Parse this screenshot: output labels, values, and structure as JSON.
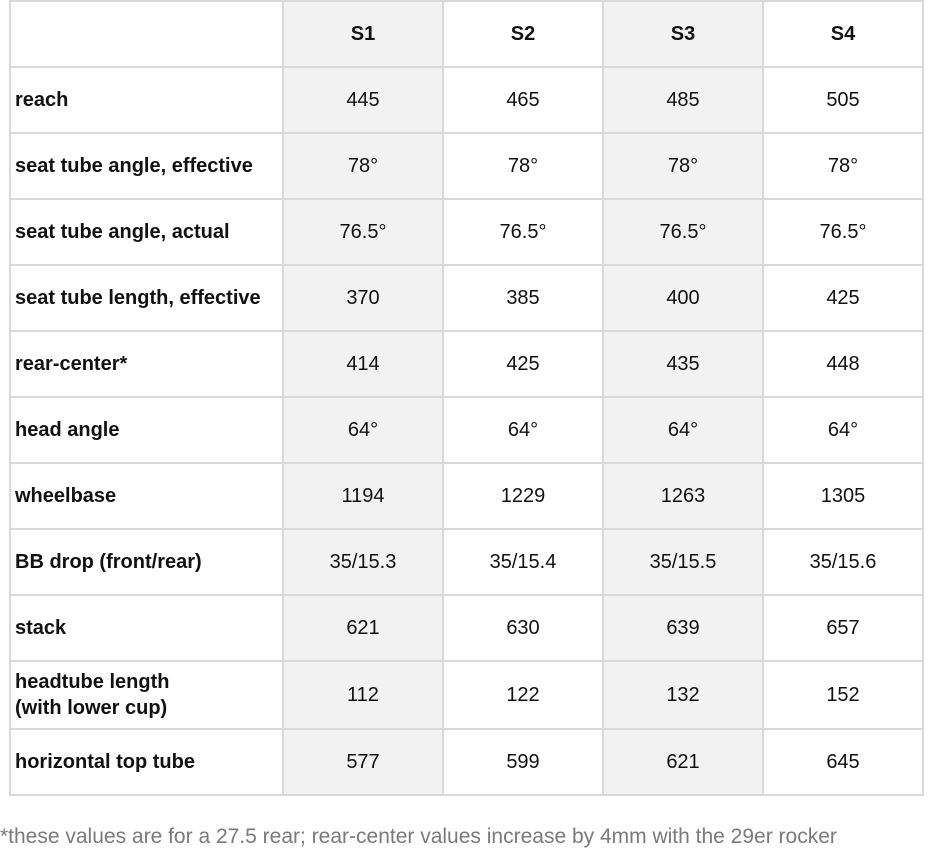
{
  "table": {
    "sizes": [
      "S1",
      "S2",
      "S3",
      "S4"
    ],
    "rows": [
      {
        "label": "reach",
        "values": [
          "445",
          "465",
          "485",
          "505"
        ]
      },
      {
        "label": "seat tube angle, effective",
        "values": [
          "78°",
          "78°",
          "78°",
          "78°"
        ]
      },
      {
        "label": "seat tube angle, actual",
        "values": [
          "76.5°",
          "76.5°",
          "76.5°",
          "76.5°"
        ]
      },
      {
        "label": "seat tube length, effective",
        "values": [
          "370",
          "385",
          "400",
          "425"
        ]
      },
      {
        "label": "rear-center*",
        "values": [
          "414",
          "425",
          "435",
          "448"
        ]
      },
      {
        "label": "head angle",
        "values": [
          "64°",
          "64°",
          "64°",
          "64°"
        ]
      },
      {
        "label": "wheelbase",
        "values": [
          "1194",
          "1229",
          "1263",
          "1305"
        ]
      },
      {
        "label": "BB drop (front/rear)",
        "values": [
          "35/15.3",
          "35/15.4",
          "35/15.5",
          "35/15.6"
        ]
      },
      {
        "label": "stack",
        "values": [
          "621",
          "630",
          "639",
          "657"
        ]
      },
      {
        "label": "headtube length\n(with lower cup)",
        "values": [
          "112",
          "122",
          "132",
          "152"
        ]
      },
      {
        "label": "horizontal top tube",
        "values": [
          "577",
          "599",
          "621",
          "645"
        ]
      }
    ]
  },
  "footnote": "*these values are for a 27.5 rear; rear-center values increase by 4mm with the 29er rocker",
  "colors": {
    "shaded_column": "#f2f2f2",
    "border": "#d9d9d9",
    "footnote_text": "#7a7a7a"
  }
}
